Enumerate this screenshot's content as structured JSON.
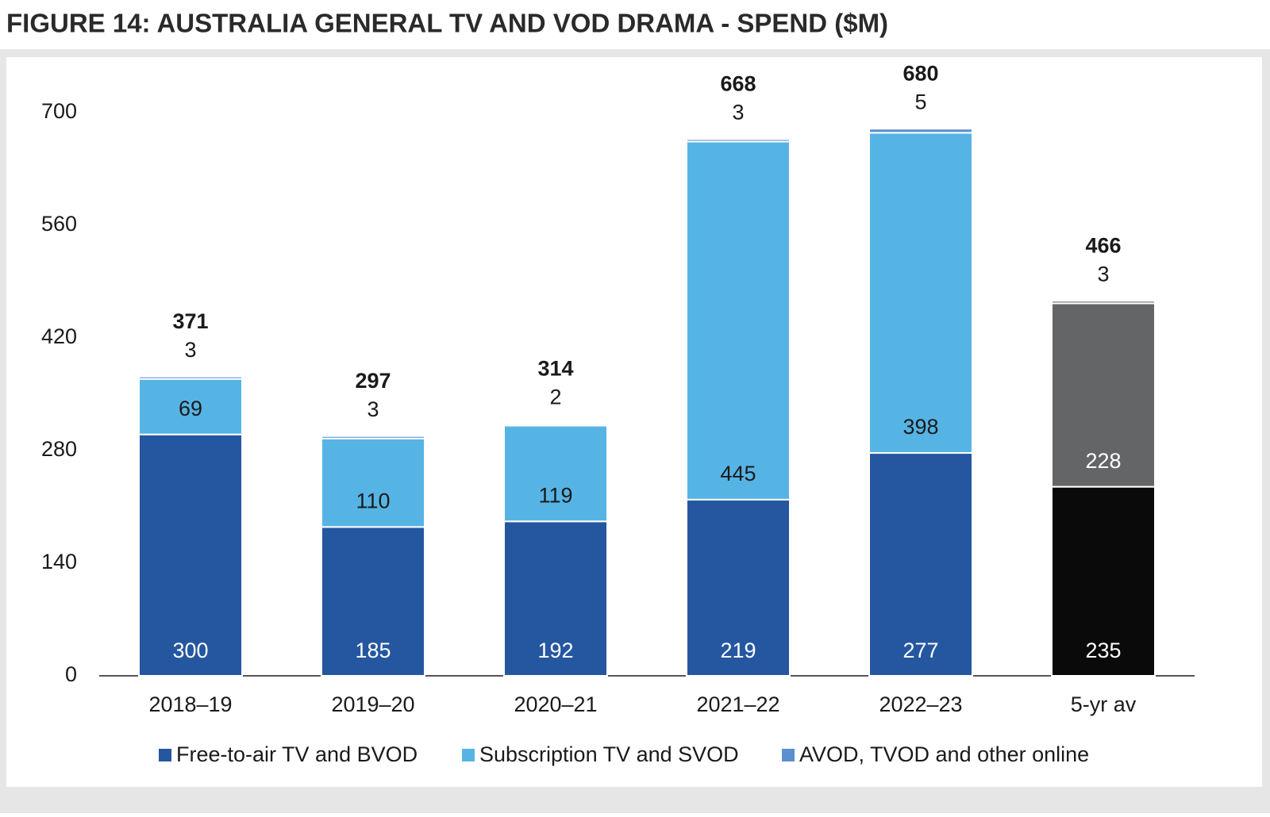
{
  "chart_data": {
    "type": "stacked_bar",
    "title": "FIGURE 14: AUSTRALIA GENERAL TV AND VOD DRAMA - SPEND ($M)",
    "categories": [
      "2018–19",
      "2019–20",
      "2020–21",
      "2021–22",
      "2022–23",
      "5-yr av"
    ],
    "series": [
      {
        "name": "Free-to-air TV and BVOD",
        "color": "#2557a0",
        "colors": [
          "#2557a0",
          "#2557a0",
          "#2557a0",
          "#2557a0",
          "#2557a0",
          "#0a0a0a"
        ],
        "values": [
          300,
          185,
          192,
          219,
          277,
          235
        ]
      },
      {
        "name": "Subscription TV and SVOD",
        "color": "#56b4e5",
        "colors": [
          "#56b4e5",
          "#56b4e5",
          "#56b4e5",
          "#56b4e5",
          "#56b4e5",
          "#646567"
        ],
        "values": [
          69,
          110,
          119,
          445,
          398,
          228
        ]
      },
      {
        "name": "AVOD, TVOD and other online",
        "color": "#5b8fd0",
        "colors": [
          "#5b8fd0",
          "#5b8fd0",
          "#5b8fd0",
          "#5b8fd0",
          "#5b8fd0",
          "#646567"
        ],
        "values": [
          3,
          3,
          2,
          3,
          5,
          3
        ]
      }
    ],
    "totals": [
      371,
      297,
      314,
      668,
      680,
      466
    ],
    "ylim": [
      0,
      700
    ],
    "yticks": [
      0,
      140,
      280,
      420,
      560,
      700
    ],
    "grid": false
  }
}
